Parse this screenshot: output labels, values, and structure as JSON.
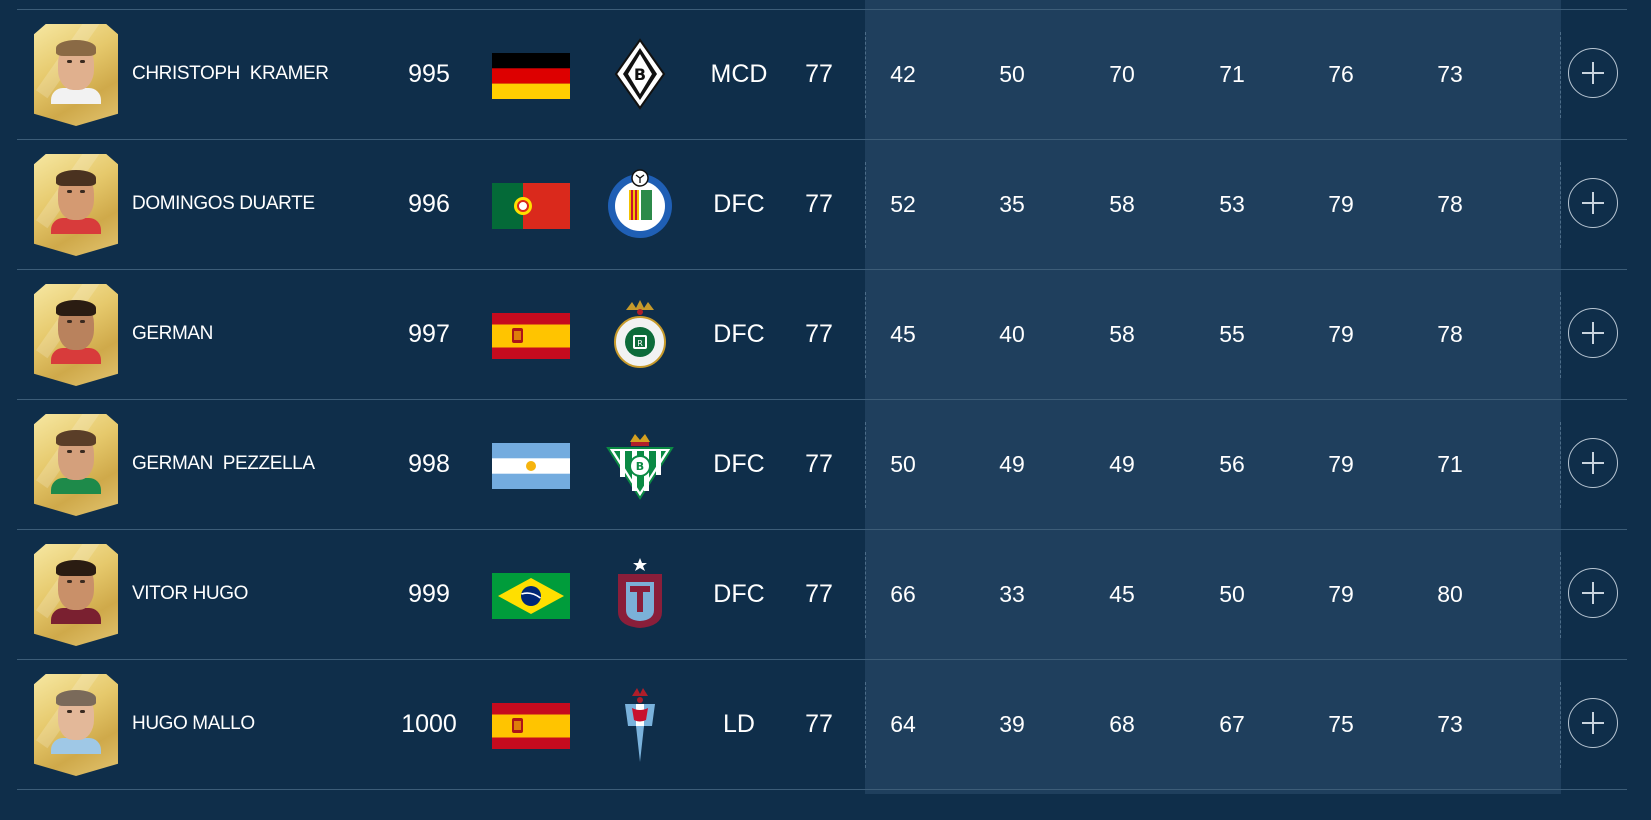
{
  "players": [
    {
      "name": "CHRISTOPH  KRAMER",
      "rank": "995",
      "nation": "Germany",
      "club": "Borussia Mönchengladbach",
      "club_crest_icon": "gladbach-crest-icon",
      "position": "MCD",
      "overall": "77",
      "stats": [
        "42",
        "50",
        "70",
        "71",
        "76",
        "73"
      ],
      "skin": "#e0b08e",
      "hair": "#8a6a45",
      "shirt": "#f2f2f2"
    },
    {
      "name": "DOMINGOS DUARTE",
      "rank": "996",
      "nation": "Portugal",
      "club": "Getafe",
      "club_crest_icon": "getafe-crest-icon",
      "position": "DFC",
      "overall": "77",
      "stats": [
        "52",
        "35",
        "58",
        "53",
        "79",
        "78"
      ],
      "skin": "#d49a72",
      "hair": "#4a3220",
      "shirt": "#d83b3b"
    },
    {
      "name": "GERMAN",
      "rank": "997",
      "nation": "Spain",
      "club": "Racing Santander",
      "club_crest_icon": "racing-santander-crest-icon",
      "position": "DFC",
      "overall": "77",
      "stats": [
        "45",
        "40",
        "58",
        "55",
        "79",
        "78"
      ],
      "skin": "#b9825d",
      "hair": "#2a1c12",
      "shirt": "#d83b3b"
    },
    {
      "name": "GERMAN  PEZZELLA",
      "rank": "998",
      "nation": "Argentina",
      "club": "Real Betis",
      "club_crest_icon": "real-betis-crest-icon",
      "position": "DFC",
      "overall": "77",
      "stats": [
        "50",
        "49",
        "49",
        "56",
        "79",
        "71"
      ],
      "skin": "#d4a07c",
      "hair": "#5a3e28",
      "shirt": "#1e8a4a"
    },
    {
      "name": "VITOR HUGO",
      "rank": "999",
      "nation": "Brazil",
      "club": "Trabzonspor",
      "club_crest_icon": "trabzonspor-crest-icon",
      "position": "DFC",
      "overall": "77",
      "stats": [
        "66",
        "33",
        "45",
        "50",
        "79",
        "80"
      ],
      "skin": "#c99069",
      "hair": "#2a1c12",
      "shirt": "#7a2030"
    },
    {
      "name": "HUGO MALLO",
      "rank": "1000",
      "nation": "Spain",
      "club": "Celta Vigo",
      "club_crest_icon": "celta-vigo-crest-icon",
      "position": "LD",
      "overall": "77",
      "stats": [
        "64",
        "39",
        "68",
        "67",
        "75",
        "73"
      ],
      "skin": "#e3b899",
      "hair": "#7a6a5a",
      "shirt": "#9fc8e6"
    }
  ],
  "colors": {
    "background": "#0f2e4a",
    "stats_band": "#1f3f5d",
    "divider": "#3d5d78"
  }
}
